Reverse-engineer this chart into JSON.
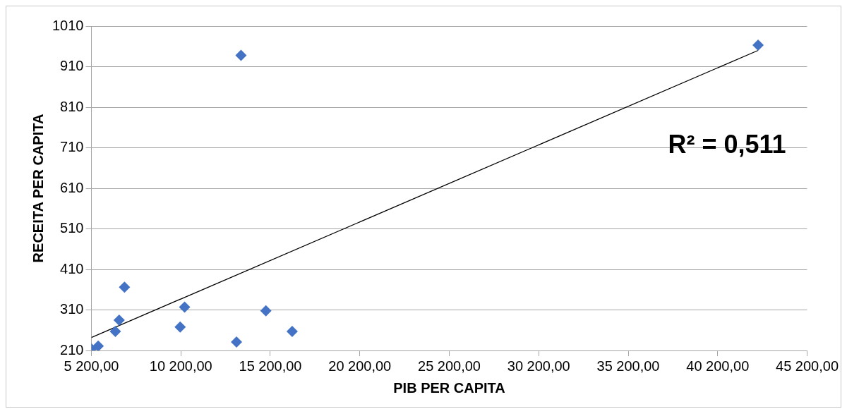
{
  "chart_data": {
    "type": "scatter",
    "xlabel": "PIB PER CAPITA",
    "ylabel": "RECEITA PER CAPITA",
    "marker": "diamond",
    "grid": "y",
    "legend": false,
    "xlim": [
      5200,
      45200
    ],
    "ylim": [
      210,
      1010
    ],
    "xticks": [
      {
        "value": 5200,
        "label": "5 200,00"
      },
      {
        "value": 10200,
        "label": "10 200,00"
      },
      {
        "value": 15200,
        "label": "15 200,00"
      },
      {
        "value": 20200,
        "label": "20 200,00"
      },
      {
        "value": 25200,
        "label": "25 200,00"
      },
      {
        "value": 30200,
        "label": "30 200,00"
      },
      {
        "value": 35200,
        "label": "35 200,00"
      },
      {
        "value": 40200,
        "label": "40 200,00"
      },
      {
        "value": 45200,
        "label": "45 200,00"
      }
    ],
    "yticks": [
      210,
      310,
      410,
      510,
      610,
      710,
      810,
      910,
      1010
    ],
    "annotations": [
      "R² = 0,511"
    ],
    "series": [
      {
        "color": "#4472c4",
        "x": [
          5200,
          5580,
          6540,
          6750,
          7050,
          10160,
          10410,
          13310,
          14950,
          16420,
          13560,
          42460
        ],
        "values": [
          214,
          221,
          257,
          285,
          366,
          268,
          317,
          231,
          308,
          257,
          938,
          963
        ]
      },
      {
        "type": "line",
        "color": "#000000",
        "marker": "none",
        "x": [
          5200,
          42460
        ],
        "values": [
          242,
          950
        ]
      }
    ]
  }
}
